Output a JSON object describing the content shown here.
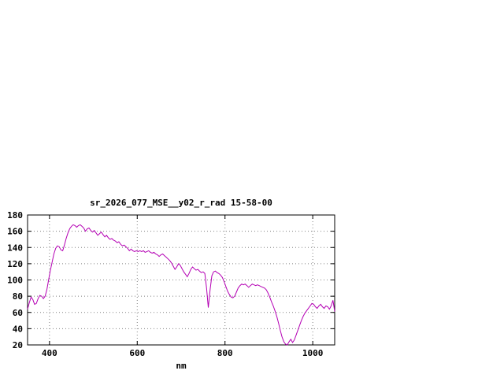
{
  "chart_data": {
    "type": "line",
    "title": "sr_2026_077_MSE__y02_r_rad 15-58-00",
    "xlabel": "nm",
    "ylabel": "",
    "xlim": [
      350,
      1050
    ],
    "ylim": [
      20,
      180
    ],
    "xticks": [
      400,
      600,
      800,
      1000
    ],
    "yticks": [
      20,
      40,
      60,
      80,
      100,
      120,
      140,
      160,
      180
    ],
    "grid": true,
    "legend": "none",
    "line_color": "#b400b4",
    "border_color": "#000000",
    "grid_color": "#808080",
    "background_color": "#ffffff",
    "series": [
      {
        "name": "spectrum",
        "points": [
          [
            350,
            64
          ],
          [
            354,
            72
          ],
          [
            358,
            79
          ],
          [
            362,
            76
          ],
          [
            366,
            70
          ],
          [
            370,
            71
          ],
          [
            374,
            77
          ],
          [
            378,
            81
          ],
          [
            382,
            80
          ],
          [
            386,
            77
          ],
          [
            390,
            80
          ],
          [
            394,
            88
          ],
          [
            398,
            100
          ],
          [
            402,
            112
          ],
          [
            406,
            122
          ],
          [
            410,
            132
          ],
          [
            414,
            139
          ],
          [
            418,
            142
          ],
          [
            422,
            141
          ],
          [
            426,
            137
          ],
          [
            430,
            136
          ],
          [
            434,
            143
          ],
          [
            438,
            151
          ],
          [
            442,
            158
          ],
          [
            446,
            163
          ],
          [
            450,
            166
          ],
          [
            454,
            168
          ],
          [
            458,
            167
          ],
          [
            462,
            165
          ],
          [
            466,
            167
          ],
          [
            470,
            168
          ],
          [
            474,
            166
          ],
          [
            478,
            164
          ],
          [
            482,
            160
          ],
          [
            486,
            163
          ],
          [
            490,
            164
          ],
          [
            494,
            161
          ],
          [
            498,
            159
          ],
          [
            502,
            161
          ],
          [
            506,
            158
          ],
          [
            510,
            155
          ],
          [
            514,
            157
          ],
          [
            518,
            159
          ],
          [
            522,
            156
          ],
          [
            526,
            153
          ],
          [
            530,
            155
          ],
          [
            534,
            152
          ],
          [
            538,
            150
          ],
          [
            542,
            151
          ],
          [
            546,
            149
          ],
          [
            550,
            148
          ],
          [
            554,
            146
          ],
          [
            558,
            147
          ],
          [
            562,
            144
          ],
          [
            566,
            142
          ],
          [
            570,
            143
          ],
          [
            574,
            141
          ],
          [
            578,
            139
          ],
          [
            582,
            136
          ],
          [
            586,
            138
          ],
          [
            590,
            136
          ],
          [
            594,
            135
          ],
          [
            598,
            136
          ],
          [
            602,
            135
          ],
          [
            606,
            136
          ],
          [
            610,
            135
          ],
          [
            614,
            136
          ],
          [
            618,
            134
          ],
          [
            622,
            135
          ],
          [
            626,
            136
          ],
          [
            630,
            134
          ],
          [
            634,
            133
          ],
          [
            638,
            134
          ],
          [
            642,
            132
          ],
          [
            646,
            131
          ],
          [
            650,
            129
          ],
          [
            654,
            131
          ],
          [
            658,
            132
          ],
          [
            662,
            130
          ],
          [
            666,
            128
          ],
          [
            670,
            126
          ],
          [
            674,
            124
          ],
          [
            678,
            121
          ],
          [
            682,
            117
          ],
          [
            686,
            113
          ],
          [
            690,
            116
          ],
          [
            694,
            120
          ],
          [
            698,
            118
          ],
          [
            702,
            114
          ],
          [
            706,
            110
          ],
          [
            710,
            107
          ],
          [
            714,
            104
          ],
          [
            718,
            108
          ],
          [
            722,
            113
          ],
          [
            726,
            116
          ],
          [
            730,
            114
          ],
          [
            734,
            112
          ],
          [
            738,
            113
          ],
          [
            742,
            111
          ],
          [
            746,
            109
          ],
          [
            750,
            110
          ],
          [
            754,
            108
          ],
          [
            758,
            90
          ],
          [
            762,
            66
          ],
          [
            766,
            88
          ],
          [
            770,
            105
          ],
          [
            774,
            110
          ],
          [
            778,
            111
          ],
          [
            782,
            109
          ],
          [
            786,
            108
          ],
          [
            790,
            106
          ],
          [
            794,
            103
          ],
          [
            798,
            98
          ],
          [
            802,
            92
          ],
          [
            806,
            86
          ],
          [
            810,
            82
          ],
          [
            814,
            79
          ],
          [
            818,
            78
          ],
          [
            822,
            80
          ],
          [
            826,
            85
          ],
          [
            830,
            90
          ],
          [
            834,
            93
          ],
          [
            838,
            95
          ],
          [
            842,
            94
          ],
          [
            846,
            95
          ],
          [
            850,
            93
          ],
          [
            854,
            91
          ],
          [
            858,
            93
          ],
          [
            862,
            95
          ],
          [
            866,
            94
          ],
          [
            870,
            93
          ],
          [
            874,
            94
          ],
          [
            878,
            93
          ],
          [
            882,
            92
          ],
          [
            886,
            91
          ],
          [
            890,
            90
          ],
          [
            894,
            88
          ],
          [
            898,
            84
          ],
          [
            902,
            79
          ],
          [
            906,
            73
          ],
          [
            910,
            68
          ],
          [
            914,
            62
          ],
          [
            918,
            55
          ],
          [
            922,
            47
          ],
          [
            926,
            38
          ],
          [
            930,
            30
          ],
          [
            934,
            24
          ],
          [
            938,
            21
          ],
          [
            942,
            20
          ],
          [
            946,
            24
          ],
          [
            950,
            27
          ],
          [
            954,
            23
          ],
          [
            958,
            26
          ],
          [
            962,
            32
          ],
          [
            966,
            38
          ],
          [
            970,
            44
          ],
          [
            974,
            50
          ],
          [
            978,
            55
          ],
          [
            982,
            59
          ],
          [
            986,
            62
          ],
          [
            990,
            65
          ],
          [
            994,
            68
          ],
          [
            998,
            71
          ],
          [
            1002,
            70
          ],
          [
            1006,
            67
          ],
          [
            1010,
            65
          ],
          [
            1014,
            68
          ],
          [
            1018,
            70
          ],
          [
            1022,
            67
          ],
          [
            1026,
            65
          ],
          [
            1030,
            68
          ],
          [
            1034,
            67
          ],
          [
            1038,
            64
          ],
          [
            1042,
            68
          ],
          [
            1046,
            75
          ],
          [
            1050,
            61
          ]
        ]
      }
    ]
  }
}
